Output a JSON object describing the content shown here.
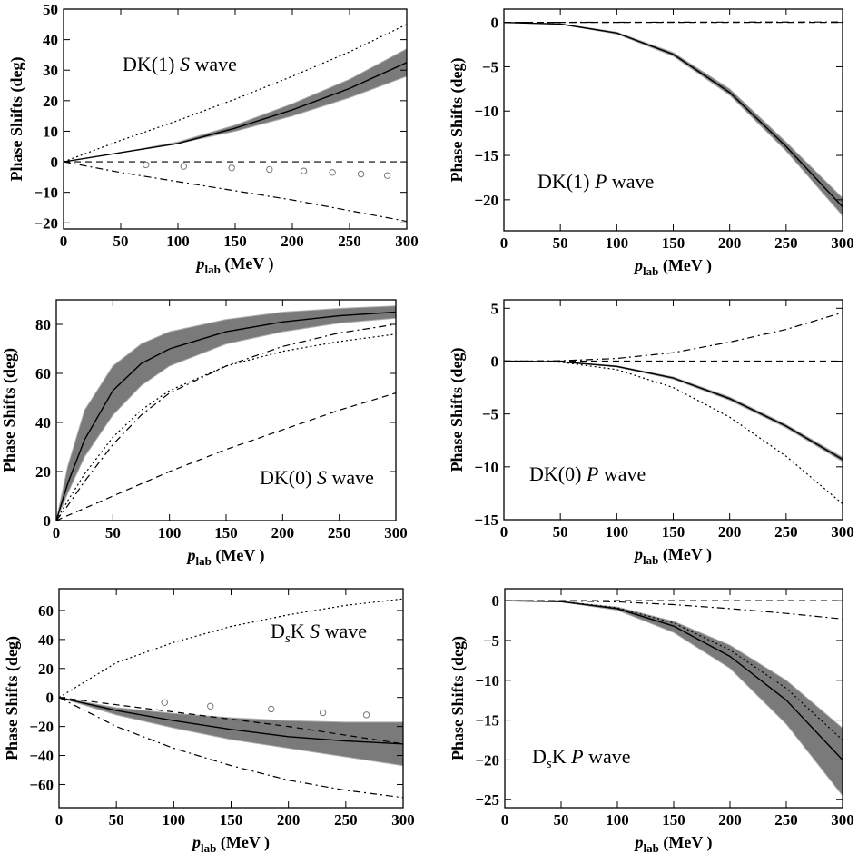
{
  "chart_data": [
    {
      "type": "line",
      "annotation": {
        "prefix": "DK(1) ",
        "italic": "S",
        "suffix": " wave"
      },
      "xlabel": {
        "italic": "p",
        "sub": "lab",
        "rest": " (MeV )"
      },
      "ylabel": "Phase Shifts (deg)",
      "xlim": [
        0,
        300
      ],
      "ylim": [
        -22,
        50
      ],
      "xticks": [
        0,
        50,
        100,
        150,
        200,
        250,
        300
      ],
      "yticks": [
        -20,
        -10,
        0,
        10,
        20,
        30,
        40,
        50
      ],
      "grid": false,
      "band": {
        "x": [
          0,
          50,
          100,
          150,
          200,
          250,
          300
        ],
        "lower": [
          0,
          3,
          6,
          10,
          15,
          21,
          28
        ],
        "upper": [
          0,
          3,
          6.5,
          12,
          19,
          27,
          37
        ]
      },
      "series": [
        {
          "style": "solid",
          "x": [
            0,
            50,
            100,
            150,
            200,
            250,
            300
          ],
          "y": [
            0,
            3,
            6,
            11,
            17,
            24,
            32.5
          ]
        },
        {
          "style": "dotted",
          "x": [
            0,
            50,
            100,
            150,
            200,
            250,
            300
          ],
          "y": [
            0,
            7,
            13.5,
            20.5,
            28,
            36,
            45
          ]
        },
        {
          "style": "dashed",
          "x": [
            0,
            300
          ],
          "y": [
            0,
            0
          ]
        },
        {
          "style": "dashdot",
          "x": [
            0,
            50,
            100,
            150,
            200,
            250,
            300
          ],
          "y": [
            0,
            -3.5,
            -6.5,
            -9.5,
            -12.5,
            -16,
            -19.5
          ]
        },
        {
          "style": "circles",
          "x": [
            72,
            105,
            147,
            180,
            210,
            235,
            260,
            283
          ],
          "y": [
            -1,
            -1.5,
            -2,
            -2.5,
            -3,
            -3.5,
            -4,
            -4.5
          ]
        }
      ]
    },
    {
      "type": "line",
      "annotation": {
        "prefix": "DK(1) ",
        "italic": "P",
        "suffix": " wave"
      },
      "xlabel": {
        "italic": "p",
        "sub": "lab",
        "rest": " (MeV )"
      },
      "ylabel": "Phase Shifts (deg)",
      "xlim": [
        0,
        300
      ],
      "ylim": [
        -23.5,
        1.5
      ],
      "xticks": [
        0,
        50,
        100,
        150,
        200,
        250,
        300
      ],
      "yticks": [
        0,
        -5,
        -10,
        -15,
        -20
      ],
      "grid": false,
      "band": {
        "x": [
          0,
          50,
          100,
          150,
          200,
          250,
          300
        ],
        "lower": [
          0,
          -0.2,
          -1.3,
          -3.8,
          -8.2,
          -14.5,
          -21.8
        ],
        "upper": [
          0,
          -0.15,
          -1.1,
          -3.4,
          -7.5,
          -13.5,
          -19.8
        ]
      },
      "series": [
        {
          "style": "solid",
          "x": [
            0,
            50,
            100,
            150,
            200,
            250,
            300
          ],
          "y": [
            0,
            -0.18,
            -1.2,
            -3.6,
            -7.9,
            -14,
            -20.8
          ]
        },
        {
          "style": "dashed",
          "x": [
            0,
            300
          ],
          "y": [
            0,
            0
          ]
        },
        {
          "style": "dashdot",
          "x": [
            0,
            300
          ],
          "y": [
            0,
            0.05
          ]
        }
      ]
    },
    {
      "type": "line",
      "annotation": {
        "prefix": "DK(0) ",
        "italic": "S",
        "suffix": " wave"
      },
      "xlabel": {
        "italic": "p",
        "sub": "lab",
        "rest": " (MeV )"
      },
      "ylabel": "Phase Shifts (deg)",
      "xlim": [
        0,
        300
      ],
      "ylim": [
        0,
        90
      ],
      "xticks": [
        0,
        50,
        100,
        150,
        200,
        250,
        300
      ],
      "yticks": [
        0,
        20,
        40,
        60,
        80
      ],
      "grid": false,
      "band": {
        "x": [
          0,
          10,
          25,
          50,
          75,
          100,
          150,
          200,
          250,
          300
        ],
        "lower": [
          0,
          11,
          26,
          43,
          55,
          63,
          72,
          77,
          80.5,
          82.5
        ],
        "upper": [
          0,
          22,
          45,
          63,
          72,
          77,
          82,
          85,
          86.5,
          87.5
        ]
      },
      "series": [
        {
          "style": "solid",
          "x": [
            0,
            10,
            25,
            50,
            75,
            100,
            150,
            200,
            250,
            300
          ],
          "y": [
            0,
            15,
            33,
            53,
            64,
            70,
            77,
            81,
            83.5,
            85
          ]
        },
        {
          "style": "dotted",
          "x": [
            0,
            10,
            25,
            50,
            75,
            100,
            150,
            200,
            250,
            300
          ],
          "y": [
            0,
            8,
            19,
            34,
            45,
            53,
            63,
            69,
            73,
            76
          ]
        },
        {
          "style": "dashdot",
          "x": [
            0,
            10,
            25,
            50,
            75,
            100,
            150,
            200,
            250,
            300
          ],
          "y": [
            0,
            6,
            16,
            31,
            43,
            52,
            63,
            71,
            76.5,
            80
          ]
        },
        {
          "style": "dashed",
          "x": [
            0,
            50,
            100,
            150,
            200,
            250,
            300
          ],
          "y": [
            0,
            10,
            20,
            29,
            37,
            45,
            52
          ]
        }
      ]
    },
    {
      "type": "line",
      "annotation": {
        "prefix": "DK(0) ",
        "italic": "P",
        "suffix": " wave"
      },
      "xlabel": {
        "italic": "p",
        "sub": "lab",
        "rest": " (MeV )"
      },
      "ylabel": "Phase Shifts (deg)",
      "xlim": [
        0,
        300
      ],
      "ylim": [
        -15,
        5.8
      ],
      "xticks": [
        0,
        50,
        100,
        150,
        200,
        250,
        300
      ],
      "yticks": [
        5,
        0,
        -5,
        -10,
        -15
      ],
      "grid": false,
      "band": {
        "x": [
          0,
          50,
          100,
          150,
          200,
          250,
          300
        ],
        "lower": [
          0,
          -0.08,
          -0.55,
          -1.7,
          -3.7,
          -6.3,
          -9.5
        ],
        "upper": [
          0,
          -0.05,
          -0.45,
          -1.5,
          -3.4,
          -6,
          -9.1
        ]
      },
      "series": [
        {
          "style": "solid",
          "x": [
            0,
            50,
            100,
            150,
            200,
            250,
            300
          ],
          "y": [
            0,
            -0.06,
            -0.5,
            -1.6,
            -3.55,
            -6.15,
            -9.3
          ]
        },
        {
          "style": "dotted",
          "x": [
            0,
            50,
            100,
            150,
            200,
            250,
            300
          ],
          "y": [
            0,
            -0.1,
            -0.8,
            -2.5,
            -5.3,
            -9,
            -13.5
          ]
        },
        {
          "style": "dashdot",
          "x": [
            0,
            50,
            100,
            150,
            200,
            250,
            300
          ],
          "y": [
            0,
            0.03,
            0.25,
            0.8,
            1.8,
            3,
            4.6
          ]
        },
        {
          "style": "dashed",
          "x": [
            0,
            300
          ],
          "y": [
            0,
            0
          ]
        }
      ]
    },
    {
      "type": "line",
      "annotation": {
        "prefix": "D",
        "sub": "s",
        "mid": "K ",
        "italic": "S",
        "suffix": " wave"
      },
      "xlabel": {
        "italic": "p",
        "sub": "lab",
        "rest": " (MeV )"
      },
      "ylabel": "Phase Shifts (deg)",
      "xlim": [
        0,
        300
      ],
      "ylim": [
        -76,
        75
      ],
      "xticks": [
        0,
        50,
        100,
        150,
        200,
        250,
        300
      ],
      "yticks": [
        60,
        40,
        20,
        0,
        -20,
        -40,
        -60
      ],
      "grid": false,
      "band": {
        "x": [
          0,
          50,
          100,
          150,
          200,
          250,
          300
        ],
        "lower": [
          0,
          -12,
          -21,
          -29,
          -35,
          -41,
          -47
        ],
        "upper": [
          0,
          -7,
          -11,
          -14,
          -16,
          -17,
          -17
        ]
      },
      "series": [
        {
          "style": "solid",
          "x": [
            0,
            50,
            100,
            150,
            200,
            250,
            300
          ],
          "y": [
            0,
            -9,
            -16,
            -22,
            -27,
            -30,
            -32
          ]
        },
        {
          "style": "dotted",
          "x": [
            0,
            50,
            100,
            150,
            200,
            250,
            300
          ],
          "y": [
            0,
            24,
            38,
            49,
            57,
            63.5,
            68
          ]
        },
        {
          "style": "dashdot",
          "x": [
            0,
            50,
            100,
            150,
            200,
            250,
            300
          ],
          "y": [
            0,
            -20,
            -35,
            -47,
            -57,
            -64,
            -69
          ]
        },
        {
          "style": "dashed",
          "x": [
            0,
            50,
            100,
            150,
            200,
            250,
            300
          ],
          "y": [
            0,
            -5,
            -10,
            -15,
            -20,
            -26,
            -32
          ]
        },
        {
          "style": "circles",
          "x": [
            92,
            132,
            185,
            230,
            268
          ],
          "y": [
            -3.5,
            -6,
            -8,
            -10.5,
            -12
          ]
        }
      ]
    },
    {
      "type": "line",
      "annotation": {
        "prefix": "D",
        "sub": "s",
        "mid": "K ",
        "italic": "P",
        "suffix": " wave"
      },
      "xlabel": {
        "italic": "p",
        "sub": "lab",
        "rest": " (MeV )"
      },
      "ylabel": "Phase Shifts (deg)",
      "xlim": [
        0,
        300
      ],
      "ylim": [
        -26,
        1.5
      ],
      "xticks": [
        0,
        50,
        100,
        150,
        200,
        250,
        300
      ],
      "yticks": [
        0,
        -5,
        -10,
        -15,
        -20,
        -25
      ],
      "grid": false,
      "band": {
        "x": [
          0,
          50,
          100,
          150,
          200,
          250,
          300
        ],
        "lower": [
          0,
          -0.15,
          -1.2,
          -4,
          -8.5,
          -15.5,
          -24.5
        ],
        "upper": [
          0,
          -0.1,
          -0.8,
          -2.6,
          -5.6,
          -10,
          -16
        ]
      },
      "series": [
        {
          "style": "solid",
          "x": [
            0,
            50,
            100,
            150,
            200,
            250,
            300
          ],
          "y": [
            0,
            -0.12,
            -1,
            -3.2,
            -7,
            -12.5,
            -20
          ]
        },
        {
          "style": "dotted",
          "x": [
            0,
            50,
            100,
            150,
            200,
            250,
            300
          ],
          "y": [
            0,
            -0.1,
            -0.9,
            -2.8,
            -6.2,
            -11,
            -17.5
          ]
        },
        {
          "style": "dashdot",
          "x": [
            0,
            50,
            100,
            150,
            200,
            250,
            300
          ],
          "y": [
            0,
            -0.02,
            -0.15,
            -0.5,
            -1,
            -1.6,
            -2.3
          ]
        },
        {
          "style": "dashed",
          "x": [
            0,
            300
          ],
          "y": [
            0,
            0
          ]
        }
      ]
    }
  ]
}
